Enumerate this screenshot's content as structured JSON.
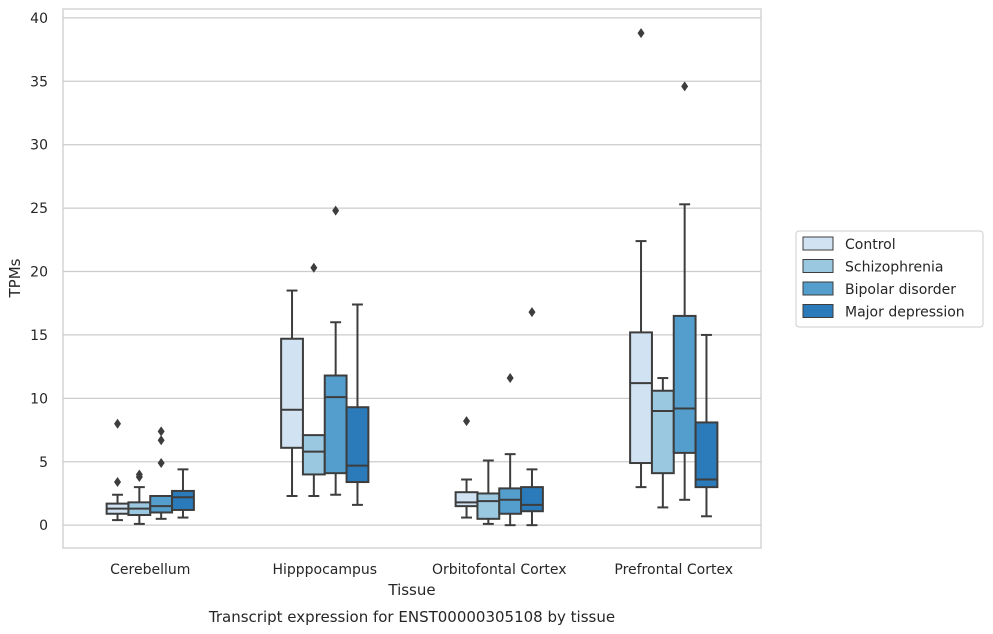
{
  "chart_data": {
    "type": "box",
    "title": "Transcript expression for ENST00000305108 by tissue",
    "xlabel": "Tissue",
    "ylabel": "TPMs",
    "ylim": [
      -1.8,
      40.7
    ],
    "yticks": [
      0,
      5,
      10,
      15,
      20,
      25,
      30,
      35,
      40
    ],
    "grid": true,
    "legend_position": "right",
    "categories": [
      "Cerebellum",
      "Hipppocampus",
      "Orbitofontal Cortex",
      "Prefrontal Cortex"
    ],
    "series": [
      {
        "name": "Control",
        "color": "#d1e2f2",
        "boxes": [
          {
            "whisker_low": 0.4,
            "q1": 0.9,
            "median": 1.3,
            "q3": 1.7,
            "whisker_high": 2.4,
            "outliers": [
              3.4,
              8.0
            ]
          },
          {
            "whisker_low": 2.3,
            "q1": 6.1,
            "median": 9.1,
            "q3": 14.7,
            "whisker_high": 18.5,
            "outliers": []
          },
          {
            "whisker_low": 0.6,
            "q1": 1.5,
            "median": 1.8,
            "q3": 2.6,
            "whisker_high": 3.6,
            "outliers": [
              8.2
            ]
          },
          {
            "whisker_low": 3.0,
            "q1": 4.9,
            "median": 11.2,
            "q3": 15.2,
            "whisker_high": 22.4,
            "outliers": [
              38.8
            ]
          }
        ]
      },
      {
        "name": "Schizophrenia",
        "color": "#9ac8e0",
        "boxes": [
          {
            "whisker_low": 0.1,
            "q1": 0.8,
            "median": 1.3,
            "q3": 1.8,
            "whisker_high": 3.0,
            "outliers": [
              3.8,
              4.0
            ]
          },
          {
            "whisker_low": 2.3,
            "q1": 4.0,
            "median": 5.8,
            "q3": 7.1,
            "whisker_high": null,
            "outliers": [
              20.3
            ]
          },
          {
            "whisker_low": 0.1,
            "q1": 0.5,
            "median": 1.9,
            "q3": 2.5,
            "whisker_high": 5.1,
            "outliers": []
          },
          {
            "whisker_low": 1.4,
            "q1": 4.1,
            "median": 9.0,
            "q3": 10.6,
            "whisker_high": 11.6,
            "outliers": []
          }
        ]
      },
      {
        "name": "Bipolar disorder",
        "color": "#539ecd",
        "boxes": [
          {
            "whisker_low": 0.5,
            "q1": 1.0,
            "median": 1.5,
            "q3": 2.3,
            "whisker_high": null,
            "outliers": [
              4.9,
              6.7,
              7.4
            ]
          },
          {
            "whisker_low": 2.4,
            "q1": 4.1,
            "median": 10.1,
            "q3": 11.8,
            "whisker_high": 16.0,
            "outliers": [
              24.8
            ]
          },
          {
            "whisker_low": 0.0,
            "q1": 0.9,
            "median": 2.0,
            "q3": 2.9,
            "whisker_high": 5.6,
            "outliers": [
              11.6
            ]
          },
          {
            "whisker_low": 2.0,
            "q1": 5.7,
            "median": 9.2,
            "q3": 16.5,
            "whisker_high": 25.3,
            "outliers": [
              34.6
            ]
          }
        ]
      },
      {
        "name": "Major depression",
        "color": "#2b7bba",
        "boxes": [
          {
            "whisker_low": 0.6,
            "q1": 1.2,
            "median": 2.2,
            "q3": 2.7,
            "whisker_high": 4.4,
            "outliers": []
          },
          {
            "whisker_low": 1.6,
            "q1": 3.4,
            "median": 4.7,
            "q3": 9.3,
            "whisker_high": 17.4,
            "outliers": []
          },
          {
            "whisker_low": 0.0,
            "q1": 1.1,
            "median": 1.6,
            "q3": 3.0,
            "whisker_high": 4.4,
            "outliers": [
              16.8
            ]
          },
          {
            "whisker_low": 0.7,
            "q1": 3.0,
            "median": 3.6,
            "q3": 8.1,
            "whisker_high": 15.0,
            "outliers": []
          }
        ]
      }
    ]
  }
}
